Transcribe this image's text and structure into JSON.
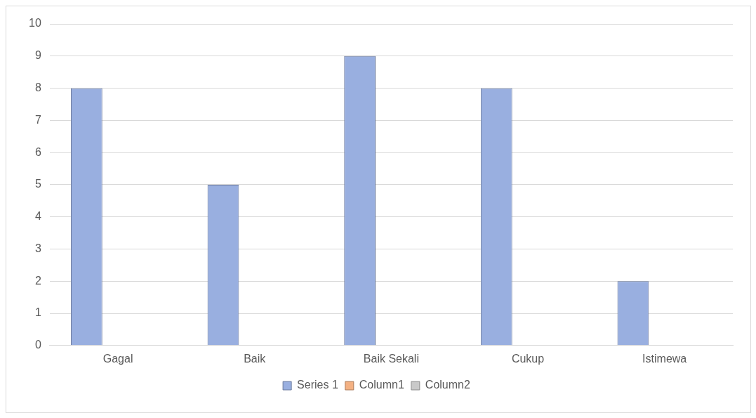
{
  "chart_data": {
    "type": "bar",
    "categories": [
      "Gagal",
      "Baik",
      "Baik Sekali",
      "Cukup",
      "Istimewa"
    ],
    "series": [
      {
        "name": "Series 1",
        "color": "#99afe0",
        "values": [
          8,
          5,
          9,
          8,
          2
        ]
      },
      {
        "name": "Column1",
        "color": "#f4b183",
        "values": [
          null,
          null,
          null,
          null,
          null
        ]
      },
      {
        "name": "Column2",
        "color": "#c9c9c9",
        "values": [
          null,
          null,
          null,
          null,
          null
        ]
      }
    ],
    "ylim": [
      0,
      10
    ],
    "yticks": [
      0,
      1,
      2,
      3,
      4,
      5,
      6,
      7,
      8,
      9,
      10
    ],
    "grid": "y",
    "legend": "bottom"
  }
}
